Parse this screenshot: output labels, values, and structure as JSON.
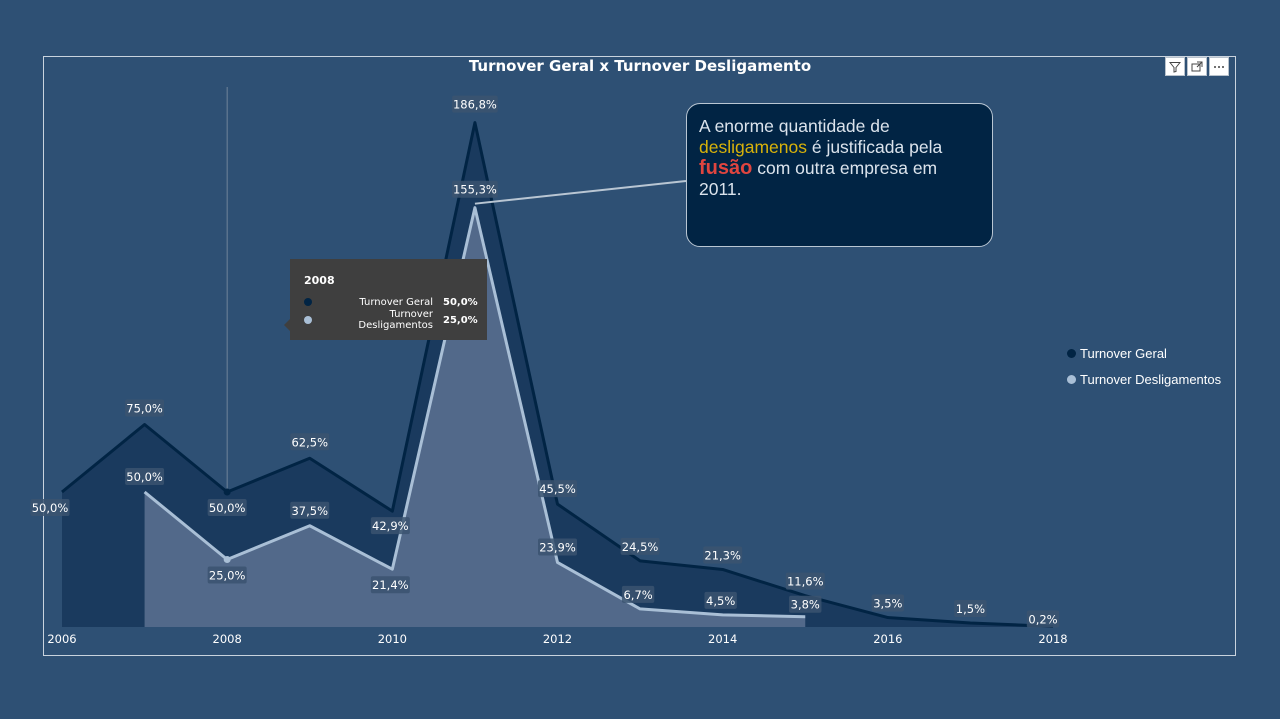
{
  "title": "Turnover Geral x Turnover Desligamento",
  "chart_data": {
    "type": "area",
    "title": "Turnover Geral x Turnover Desligamento",
    "x": [
      2006,
      2007,
      2008,
      2009,
      2010,
      2011,
      2012,
      2013,
      2014,
      2015,
      2016,
      2017,
      2018
    ],
    "x_tick_labels": [
      "2006",
      "2008",
      "2010",
      "2012",
      "2014",
      "2016",
      "2018"
    ],
    "ylim": [
      0,
      200
    ],
    "grid": false,
    "legend_position": "right",
    "series": [
      {
        "name": "Turnover Geral",
        "color": "#012444",
        "values": [
          50.0,
          75.0,
          50.0,
          62.5,
          42.9,
          186.8,
          45.5,
          24.5,
          21.3,
          11.6,
          3.5,
          1.5,
          0.2
        ],
        "labels": [
          "50,0%",
          "75,0%",
          "50,0%",
          "62,5%",
          "42,9%",
          "186,8%",
          "45,5%",
          "24,5%",
          "21,3%",
          "11,6%",
          "3,5%",
          "1,5%",
          "0,2%"
        ]
      },
      {
        "name": "Turnover Desligamentos",
        "color": "#a9bfd6",
        "values": [
          null,
          50.0,
          25.0,
          37.5,
          21.4,
          155.3,
          23.9,
          6.7,
          4.5,
          3.8,
          null,
          null,
          null
        ],
        "labels": [
          null,
          "50,0%",
          "25,0%",
          "37,5%",
          "21,4%",
          "155,3%",
          "23,9%",
          "6,7%",
          "4,5%",
          "3,8%",
          null,
          null,
          null
        ]
      }
    ]
  },
  "tooltip": {
    "title": "2008",
    "rows": [
      {
        "label": "Turnover Geral",
        "value": "50,0%",
        "color": "#012444"
      },
      {
        "label": "Turnover Desligamentos",
        "value": "25,0%",
        "color": "#a9bfd6"
      }
    ]
  },
  "annotation": {
    "part1": "A enorme quantidade de ",
    "part2": "desligamenos",
    "part3": " é justificada pela ",
    "part4": "fusão",
    "part5": " com outra empresa em 2011."
  },
  "legend": [
    {
      "label": "Turnover Geral",
      "color": "#012444"
    },
    {
      "label": "Turnover Desligamentos",
      "color": "#a9bfd6"
    }
  ],
  "icons": [
    "filter-icon",
    "focus-mode-icon",
    "more-options-icon"
  ]
}
